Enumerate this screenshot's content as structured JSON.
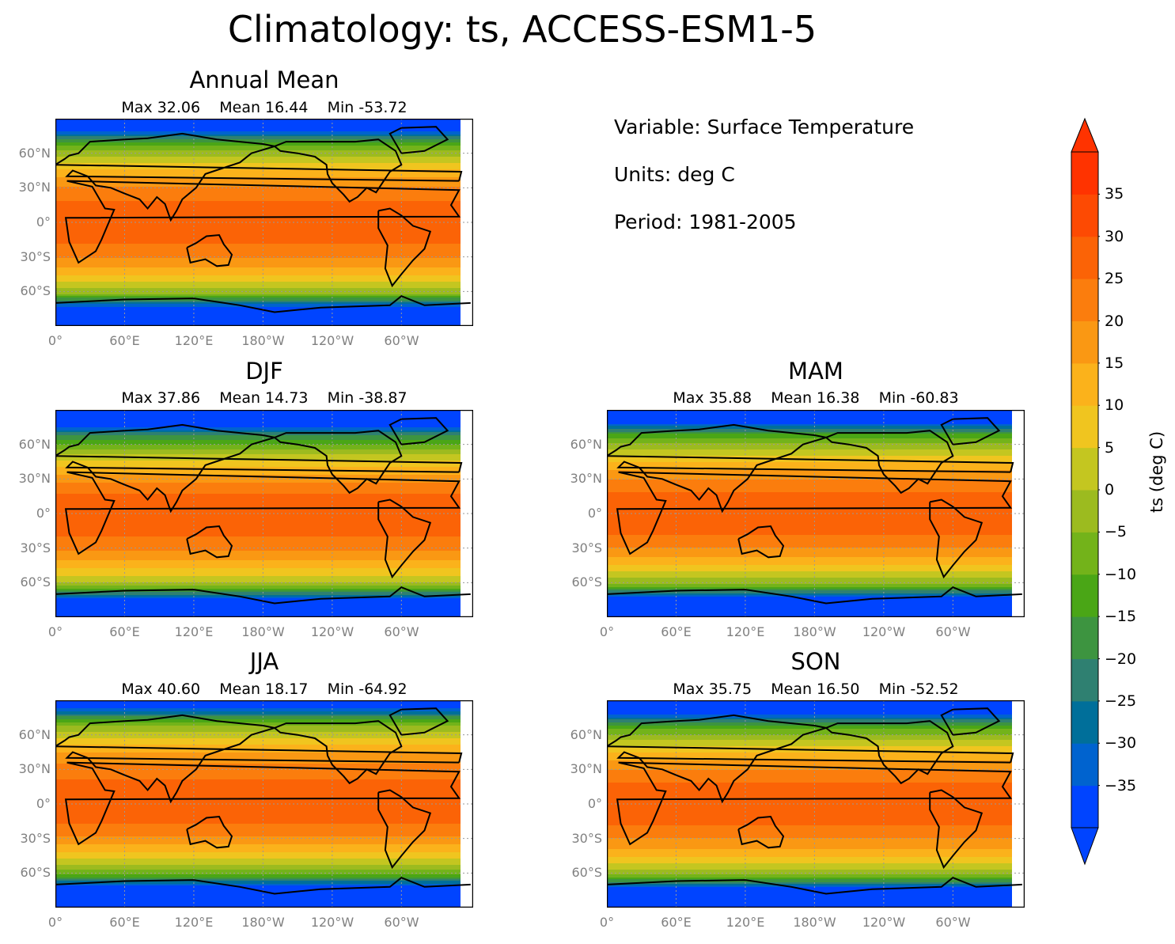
{
  "title": "Climatology: ts, ACCESS-ESM1-5",
  "info": {
    "variable": "Variable: Surface Temperature",
    "units": "Units: deg C",
    "period": "Period: 1981-2005"
  },
  "axes": {
    "lat_ticks": [
      "60°N",
      "30°N",
      "0°",
      "30°S",
      "60°S"
    ],
    "lon_ticks": [
      "0°",
      "60°E",
      "120°E",
      "180°W",
      "120°W",
      "60°W"
    ]
  },
  "colorbar": {
    "label": "ts (deg C)",
    "ticks": [
      "35",
      "30",
      "25",
      "20",
      "15",
      "10",
      "5",
      "0",
      "−5",
      "−10",
      "−15",
      "−20",
      "−25",
      "−30",
      "−35"
    ],
    "levels": [
      -40,
      -35,
      -30,
      -25,
      -20,
      -15,
      -10,
      -5,
      0,
      5,
      10,
      15,
      20,
      25,
      30,
      35,
      40
    ],
    "colors": [
      "#0044ff",
      "#0063cf",
      "#006f9a",
      "#2f8071",
      "#3d9440",
      "#4aa616",
      "#73b31a",
      "#9cbb1f",
      "#c4c620",
      "#f0c51f",
      "#fbb21b",
      "#fa9813",
      "#fb7d0d",
      "#fb6306",
      "#fd4a03",
      "#ff3300"
    ],
    "extend": "both"
  },
  "panels": [
    {
      "title": "Annual Mean",
      "stats": "Max 32.06    Mean 16.44    Min -53.72"
    },
    {
      "title": "DJF",
      "stats": "Max 37.86    Mean 14.73    Min -38.87"
    },
    {
      "title": "MAM",
      "stats": "Max 35.88    Mean 16.38    Min -60.83"
    },
    {
      "title": "JJA",
      "stats": "Max 40.60    Mean 18.17    Min -64.92"
    },
    {
      "title": "SON",
      "stats": "Max 35.75    Mean 16.50    Min -52.52"
    }
  ]
}
